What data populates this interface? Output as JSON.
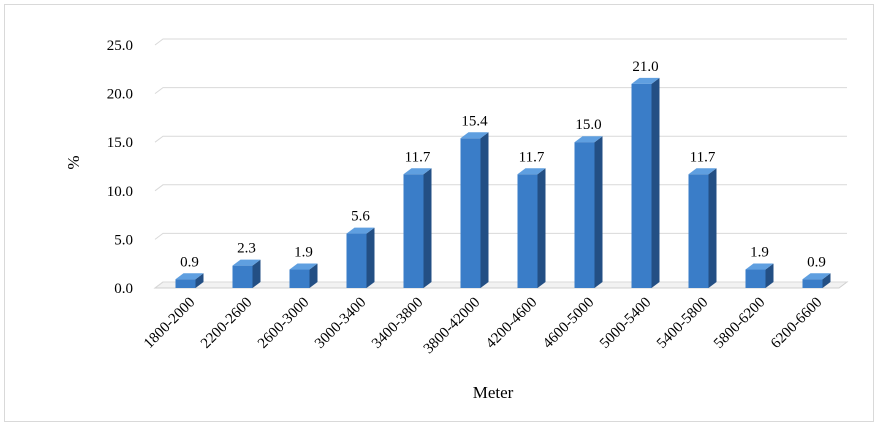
{
  "chart_data": {
    "type": "bar",
    "title": "",
    "xlabel": "Meter",
    "ylabel": "%",
    "categories": [
      "1800-2000",
      "2200-2600",
      "2600-3000",
      "3000-3400",
      "3400-3800",
      "3800-42000",
      "4200-4600",
      "4600-5000",
      "5000-5400",
      "5400-5800",
      "5800-6200",
      "6200-6600"
    ],
    "values": [
      0.9,
      2.3,
      1.9,
      5.6,
      11.7,
      15.4,
      11.7,
      15.0,
      21.0,
      11.7,
      1.9,
      0.9
    ],
    "value_labels": [
      "0.9",
      "2.3",
      "1.9",
      "5.6",
      "11.7",
      "15.4",
      "11.7",
      "15.0",
      "21.0",
      "11.7",
      "1.9",
      "0.9"
    ],
    "ylim": [
      0,
      25
    ],
    "yticks": [
      "0.0",
      "5.0",
      "10.0",
      "15.0",
      "20.0",
      "25.0"
    ],
    "grid": true,
    "legend": "none",
    "bar_style": "3d",
    "colors": {
      "bar_front": "#3a7dc8",
      "bar_side": "#234f84",
      "bar_top": "#5f9fe0",
      "grid": "#d9d9d9",
      "floor": "#cfcfcf"
    }
  }
}
